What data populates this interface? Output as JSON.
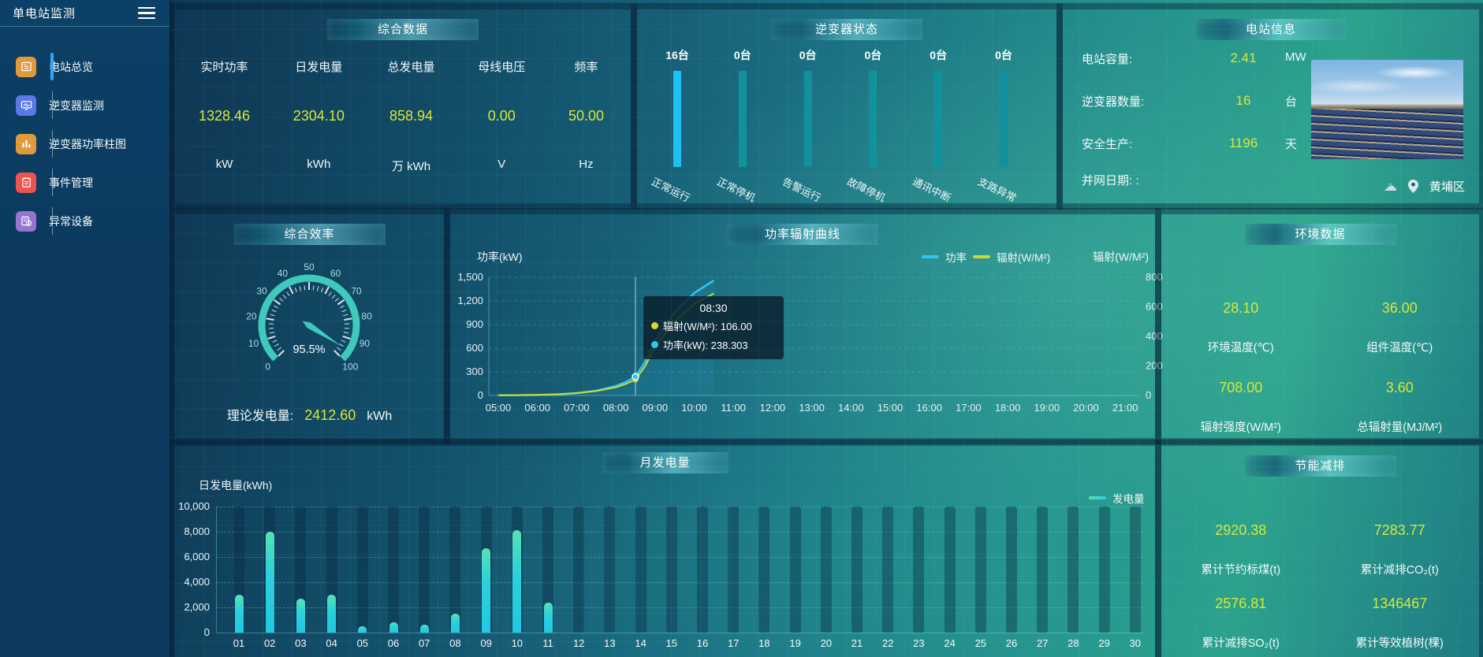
{
  "app": {
    "title": "单电站监测"
  },
  "sidebar": {
    "items": [
      {
        "label": "电站总览",
        "icon": "station-overview-icon",
        "color": "#e09a3c",
        "active": true
      },
      {
        "label": "逆变器监测",
        "icon": "inverter-monitor-icon",
        "color": "#5b78e8",
        "active": false
      },
      {
        "label": "逆变器功率柱图",
        "icon": "inverter-power-bars-icon",
        "color": "#e09a3c",
        "active": false
      },
      {
        "label": "事件管理",
        "icon": "event-management-icon",
        "color": "#ef5350",
        "active": false
      },
      {
        "label": "异常设备",
        "icon": "abnormal-device-icon",
        "color": "#9575cd",
        "active": false
      }
    ]
  },
  "panels": {
    "summary": {
      "title": "综合数据",
      "metrics": [
        {
          "label": "实时功率",
          "value": "1328.46",
          "unit": "kW"
        },
        {
          "label": "日发电量",
          "value": "2304.10",
          "unit": "kWh"
        },
        {
          "label": "总发电量",
          "value": "858.94",
          "unit": "万 kWh"
        },
        {
          "label": "母线电压",
          "value": "0.00",
          "unit": "V"
        },
        {
          "label": "频率",
          "value": "50.00",
          "unit": "Hz"
        }
      ]
    },
    "inverter_status": {
      "title": "逆变器状态",
      "count_unit": "台"
    },
    "station_info": {
      "title": "电站信息",
      "rows": [
        {
          "label": "电站容量:",
          "value": "2.41",
          "unit": "MW"
        },
        {
          "label": "逆变器数量:",
          "value": "16",
          "unit": "台"
        },
        {
          "label": "安全生产:",
          "value": "1196",
          "unit": "天"
        },
        {
          "label": "并网日期: :",
          "value": "",
          "unit": ""
        }
      ],
      "location": "黄埔区"
    },
    "efficiency": {
      "title": "综合效率",
      "footer_label": "理论发电量:",
      "footer_value": "2412.60",
      "footer_unit": "kWh"
    },
    "power_radiation": {
      "title": "功率辐射曲线",
      "tooltip": {
        "time": "08:30",
        "rows": [
          {
            "color": "#d6dd2b",
            "text": "辐射(W/M²): 106.00"
          },
          {
            "color": "#2fc7f2",
            "text": "功率(kW): 238.303"
          }
        ]
      }
    },
    "environment": {
      "title": "环境数据",
      "stats": [
        {
          "value": "28.10",
          "label": "环境温度(℃)"
        },
        {
          "value": "36.00",
          "label": "组件温度(℃)"
        },
        {
          "value": "708.00",
          "label": "辐射强度(W/M²)"
        },
        {
          "value": "3.60",
          "label": "总辐射量(MJ/M²)"
        }
      ]
    },
    "monthly": {
      "title": "月发电量"
    },
    "savings": {
      "title": "节能减排",
      "stats": [
        {
          "value": "2920.38",
          "label": "累计节约标煤(t)"
        },
        {
          "value": "7283.77",
          "label": "累计减排CO₂(t)"
        },
        {
          "value": "2576.81",
          "label": "累计减排SO₂(t)"
        },
        {
          "value": "1346467",
          "label": "累计等效植树(棵)"
        }
      ]
    }
  },
  "colors": {
    "value_yellow": "#d7e837",
    "power_cyan": "#2fc7f2",
    "radiation_yellow": "#cdd92c",
    "active_bar": "#1fc0ef",
    "idle_bar": "#11919b",
    "gauge_teal": "#3fc9bd"
  },
  "chart_data": [
    {
      "id": "inverter_status",
      "type": "bar",
      "title": "逆变器状态",
      "unit": "台",
      "categories": [
        "正常运行",
        "正常停机",
        "告警运行",
        "故障停机",
        "通讯中断",
        "支路异常"
      ],
      "values": [
        16,
        0,
        0,
        0,
        0,
        0
      ]
    },
    {
      "id": "efficiency_gauge",
      "type": "gauge",
      "title": "综合效率",
      "value": 95.5,
      "unit": "%",
      "min": 0,
      "max": 100,
      "tick_step": 10
    },
    {
      "id": "power_radiation",
      "type": "line",
      "title": "功率辐射曲线",
      "x_labels": [
        "05:00",
        "06:00",
        "07:00",
        "08:00",
        "09:00",
        "10:00",
        "11:00",
        "12:00",
        "13:00",
        "14:00",
        "15:00",
        "16:00",
        "17:00",
        "18:00",
        "19:00",
        "20:00",
        "21:00"
      ],
      "y_left": {
        "label": "功率(kW)",
        "min": 0,
        "max": 1500,
        "ticks": [
          0,
          300,
          600,
          900,
          1200,
          1500
        ]
      },
      "y_right": {
        "label": "辐射(W/M²)",
        "min": 0,
        "max": 800,
        "ticks": [
          0,
          200,
          400,
          600,
          800
        ]
      },
      "hover_x": "08:30",
      "series": [
        {
          "name": "功率",
          "axis": "left",
          "color": "#2fc7f2",
          "points": [
            [
              "05:00",
              2
            ],
            [
              "05:30",
              3
            ],
            [
              "06:00",
              6
            ],
            [
              "06:30",
              12
            ],
            [
              "07:00",
              30
            ],
            [
              "07:30",
              60
            ],
            [
              "08:00",
              120
            ],
            [
              "08:15",
              170
            ],
            [
              "08:30",
              238.303
            ],
            [
              "08:45",
              430
            ],
            [
              "09:00",
              700
            ],
            [
              "09:30",
              1050
            ],
            [
              "10:00",
              1300
            ],
            [
              "10:30",
              1460
            ]
          ]
        },
        {
          "name": "辐射(W/M²)",
          "axis": "right",
          "color": "#cdd92c",
          "points": [
            [
              "05:00",
              1
            ],
            [
              "06:00",
              4
            ],
            [
              "06:30",
              8
            ],
            [
              "07:00",
              16
            ],
            [
              "07:30",
              30
            ],
            [
              "08:00",
              55
            ],
            [
              "08:15",
              78
            ],
            [
              "08:30",
              106
            ],
            [
              "08:45",
              200
            ],
            [
              "09:00",
              330
            ],
            [
              "09:30",
              500
            ],
            [
              "10:00",
              620
            ],
            [
              "10:30",
              690
            ]
          ]
        }
      ]
    },
    {
      "id": "monthly_energy",
      "type": "bar",
      "title": "月发电量",
      "ylabel": "日发电量(kWh)",
      "legend": "发电量",
      "ylim": [
        0,
        10000
      ],
      "yticks": [
        0,
        2000,
        4000,
        6000,
        8000,
        10000
      ],
      "categories": [
        "01",
        "02",
        "03",
        "04",
        "05",
        "06",
        "07",
        "08",
        "09",
        "10",
        "11",
        "12",
        "13",
        "14",
        "15",
        "16",
        "17",
        "18",
        "19",
        "20",
        "21",
        "22",
        "23",
        "24",
        "25",
        "26",
        "27",
        "28",
        "29",
        "30"
      ],
      "values": [
        3000,
        8000,
        2700,
        3000,
        500,
        800,
        650,
        1500,
        6700,
        8100,
        2400,
        0,
        0,
        0,
        0,
        0,
        0,
        0,
        0,
        0,
        0,
        0,
        0,
        0,
        0,
        0,
        0,
        0,
        0,
        0
      ]
    }
  ]
}
